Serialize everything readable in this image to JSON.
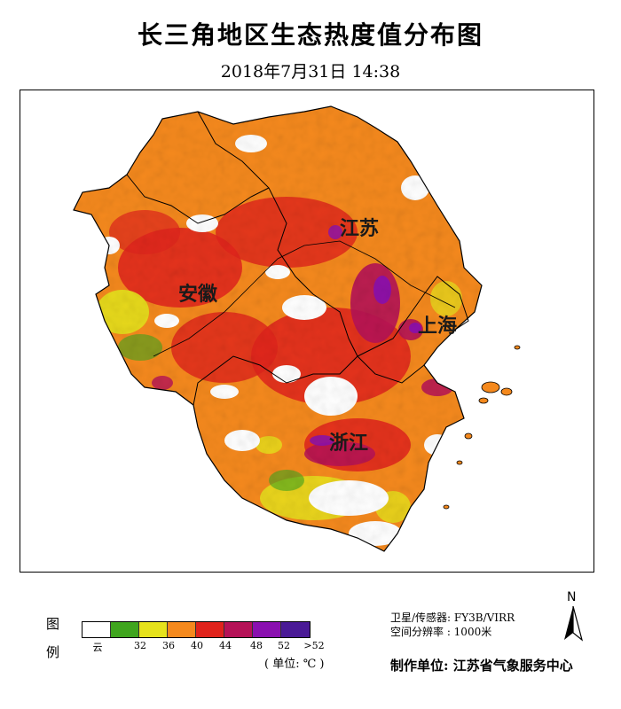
{
  "title": "长三角地区生态热度值分布图",
  "subtitle": "2018年7月31日  14:38",
  "map": {
    "regions": [
      {
        "name": "江苏"
      },
      {
        "name": "安徽"
      },
      {
        "name": "上海"
      },
      {
        "name": "浙江"
      }
    ]
  },
  "legend": {
    "caption_top": "图",
    "caption_bottom": "例",
    "classes": [
      {
        "label": "云",
        "color": "#ffffff"
      },
      {
        "label": "32",
        "color": "#3fa51e"
      },
      {
        "label": "36",
        "color": "#e6e21c"
      },
      {
        "label": "40",
        "color": "#f5891d"
      },
      {
        "label": "44",
        "color": "#e0231c"
      },
      {
        "label": "48",
        "color": "#b51257"
      },
      {
        "label": "52",
        "color": "#8a10b0"
      },
      {
        "label": ">52",
        "color": "#4a1a96"
      }
    ],
    "unit": "( 单位: ℃ )"
  },
  "info": {
    "satellite": "卫星/传感器: FY3B/VIRR",
    "resolution": "空间分辨率 : 1000米"
  },
  "producer": "制作单位: 江苏省气象服务中心",
  "north_arrow": "N"
}
